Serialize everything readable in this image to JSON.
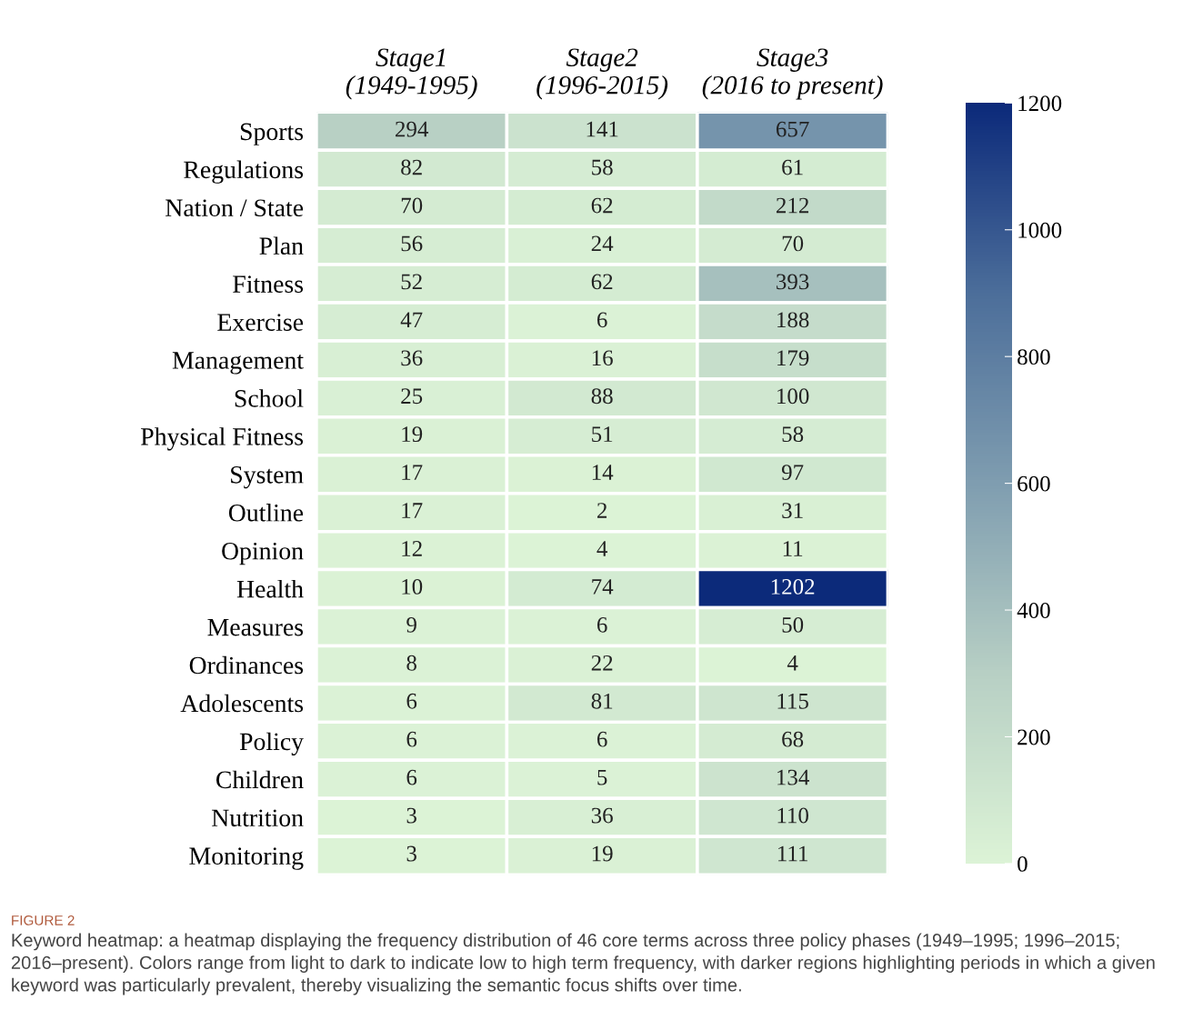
{
  "chart_data": {
    "type": "heatmap",
    "categories": [
      "Stage1\n(1949-1995)",
      "Stage2\n(1996-2015)",
      "Stage3\n(2016 to present)"
    ],
    "y_categories": [
      "Sports",
      "Regulations",
      "Nation / State",
      "Plan",
      "Fitness",
      "Exercise",
      "Management",
      "School",
      "Physical Fitness",
      "System",
      "Outline",
      "Opinion",
      "Health",
      "Measures",
      "Ordinances",
      "Adolescents",
      "Policy",
      "Children",
      "Nutrition",
      "Monitoring"
    ],
    "cells": [
      [
        294,
        141,
        657
      ],
      [
        82,
        58,
        61
      ],
      [
        70,
        62,
        212
      ],
      [
        56,
        24,
        70
      ],
      [
        52,
        62,
        393
      ],
      [
        47,
        6,
        188
      ],
      [
        36,
        16,
        179
      ],
      [
        25,
        88,
        100
      ],
      [
        19,
        51,
        58
      ],
      [
        17,
        14,
        97
      ],
      [
        17,
        2,
        31
      ],
      [
        12,
        4,
        11
      ],
      [
        10,
        74,
        1202
      ],
      [
        9,
        6,
        50
      ],
      [
        8,
        22,
        4
      ],
      [
        6,
        81,
        115
      ],
      [
        6,
        6,
        68
      ],
      [
        6,
        5,
        134
      ],
      [
        3,
        36,
        110
      ],
      [
        3,
        19,
        111
      ]
    ],
    "clim": [
      0,
      1200
    ],
    "cticks": [
      0,
      200,
      400,
      600,
      800,
      1000,
      1200
    ],
    "data_labels": true,
    "annotations": [
      "FIGURE 2",
      "Keyword heatmap: a heatmap displaying the frequency distribution of 46 core terms across three policy phases (1949–1995; 1996–2015; 2016–present). Colors range from light to dark to indicate low to high term frequency, with darker regions highlighting periods in which a given keyword was particularly prevalent, thereby visualizing the semantic focus shifts over time."
    ]
  }
}
